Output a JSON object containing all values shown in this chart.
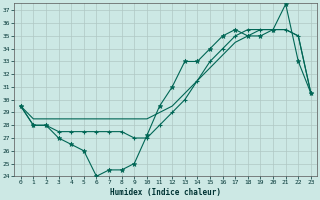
{
  "xlabel": "Humidex (Indice chaleur)",
  "bg_color": "#cce8e4",
  "grid_color": "#b0c8c4",
  "line_color": "#006655",
  "xlim": [
    -0.5,
    23.5
  ],
  "ylim": [
    24,
    37.6
  ],
  "yticks": [
    24,
    25,
    26,
    27,
    28,
    29,
    30,
    31,
    32,
    33,
    34,
    35,
    36,
    37
  ],
  "xticks": [
    0,
    1,
    2,
    3,
    4,
    5,
    6,
    7,
    8,
    9,
    10,
    11,
    12,
    13,
    14,
    15,
    16,
    17,
    18,
    19,
    20,
    21,
    22,
    23
  ],
  "series1_x": [
    0,
    1,
    2,
    3,
    4,
    5,
    6,
    7,
    8,
    9,
    10,
    11,
    12,
    13,
    14,
    15,
    16,
    17,
    18,
    19,
    20,
    21,
    22,
    23
  ],
  "series1_y": [
    29.5,
    28,
    28,
    27,
    26.5,
    26,
    24,
    24.5,
    24.5,
    25.0,
    27.2,
    29.5,
    31.0,
    33.0,
    33.0,
    34.0,
    35.0,
    35.5,
    35.0,
    35.0,
    35.5,
    37.5,
    33.0,
    30.5
  ],
  "series2_x": [
    0,
    1,
    2,
    3,
    4,
    5,
    6,
    7,
    8,
    9,
    10,
    11,
    12,
    13,
    14,
    15,
    16,
    17,
    18,
    19,
    20,
    21,
    22,
    23
  ],
  "series2_y": [
    29.5,
    28,
    28,
    27.5,
    27.5,
    27.5,
    27.5,
    27.5,
    27.5,
    27.0,
    27.0,
    28.0,
    29.0,
    30.0,
    31.5,
    33.0,
    34.0,
    35.0,
    35.5,
    35.5,
    35.5,
    35.5,
    35.0,
    30.5
  ],
  "series3_x": [
    0,
    1,
    2,
    3,
    4,
    5,
    6,
    7,
    8,
    9,
    10,
    11,
    12,
    13,
    14,
    15,
    16,
    17,
    18,
    19,
    20,
    21,
    22,
    23
  ],
  "series3_y": [
    29.5,
    28.5,
    28.5,
    28.5,
    28.5,
    28.5,
    28.5,
    28.5,
    28.5,
    28.5,
    28.5,
    29.0,
    29.5,
    30.5,
    31.5,
    32.5,
    33.5,
    34.5,
    35.0,
    35.5,
    35.5,
    35.5,
    35.0,
    30.5
  ]
}
